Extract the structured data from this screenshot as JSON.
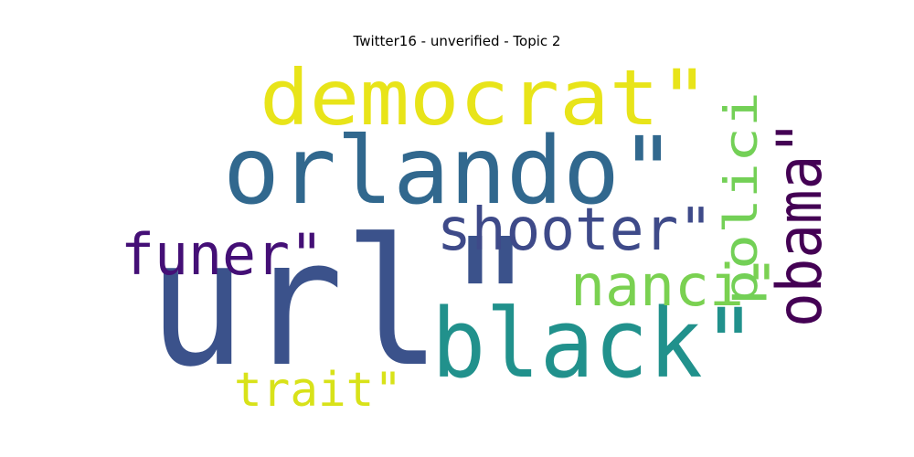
{
  "title": "Twitter16 - unverified - Topic 2",
  "words": [
    {
      "text": "url\"",
      "color": "#3b528b",
      "rank": 1
    },
    {
      "text": "black\"",
      "color": "#21918c",
      "rank": 2
    },
    {
      "text": "orlando\"",
      "color": "#31688e",
      "rank": 3
    },
    {
      "text": "democrat\"",
      "color": "#e8e419",
      "rank": 4
    },
    {
      "text": "shooter\"",
      "color": "#3e4a89",
      "rank": 5
    },
    {
      "text": "obama\"",
      "color": "#440154",
      "rank": 6
    },
    {
      "text": "nanci\"",
      "color": "#7ad151",
      "rank": 7
    },
    {
      "text": "funer\"",
      "color": "#440f76",
      "rank": 8
    },
    {
      "text": "polici",
      "color": "#73d056",
      "rank": 9
    },
    {
      "text": "trait\"",
      "color": "#d8e219",
      "rank": 10
    }
  ]
}
